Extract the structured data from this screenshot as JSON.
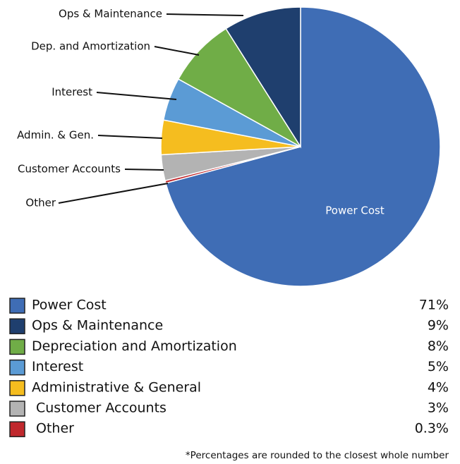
{
  "chart_data": {
    "type": "pie",
    "categories": [
      "Power Cost",
      "Ops & Maintenance",
      "Depreciation and Amortization",
      "Interest",
      "Administrative & General",
      "Customer Accounts",
      "Other"
    ],
    "slice_labels": [
      "Power Cost",
      "Ops & Maintenance",
      "Dep. and Amortization",
      "Interest",
      "Admin. & Gen.",
      "Customer Accounts",
      "Other"
    ],
    "values": [
      71,
      9,
      8,
      5,
      4,
      3,
      0.3
    ],
    "value_labels": [
      "71%",
      "9%",
      "8%",
      "5%",
      "4%",
      "3%",
      "0.3%"
    ],
    "colors": [
      "#3f6db5",
      "#1f3f6e",
      "#70ad47",
      "#5b9bd5",
      "#f5bd1f",
      "#b3b3b3",
      "#c0282d"
    ],
    "footnote": "*Percentages are rounded to the closest whole number"
  }
}
